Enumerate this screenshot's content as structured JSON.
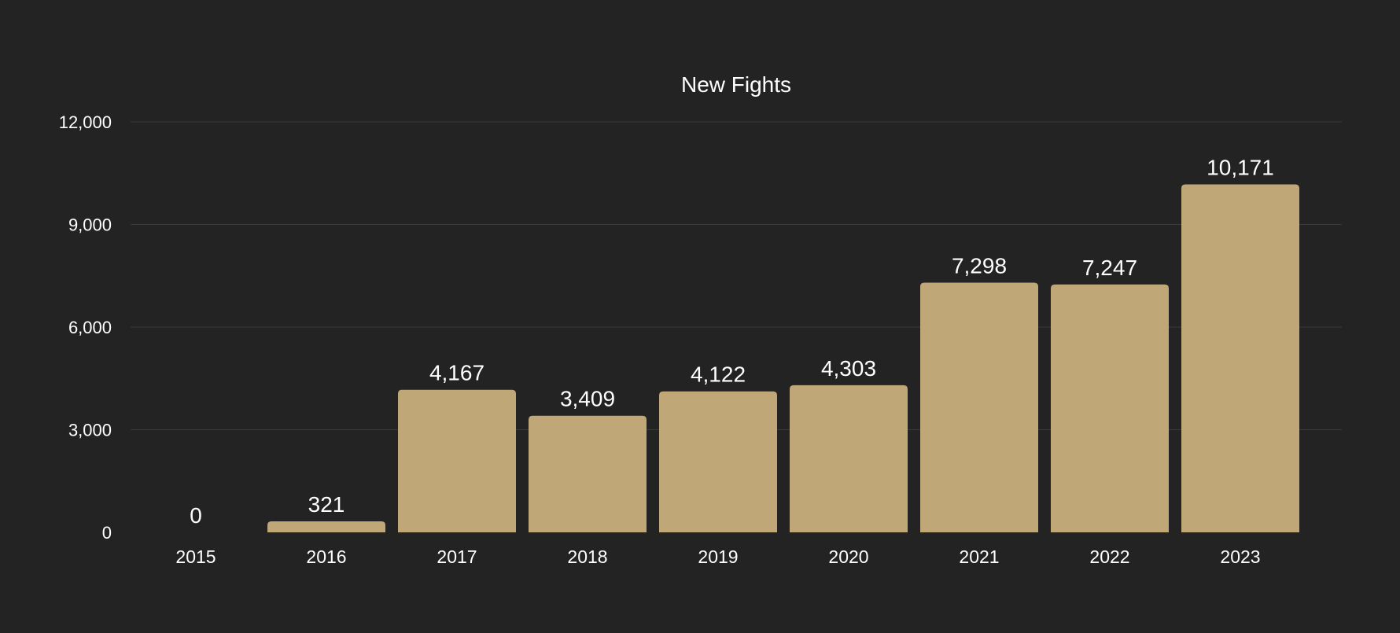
{
  "chart_data": {
    "type": "bar",
    "title": "New Fights",
    "xlabel": "",
    "ylabel": "",
    "categories": [
      "2015",
      "2016",
      "2017",
      "2018",
      "2019",
      "2020",
      "2021",
      "2022",
      "2023"
    ],
    "values": [
      0,
      321,
      4167,
      3409,
      4122,
      4303,
      7298,
      7247,
      10171
    ],
    "data_labels": [
      "0",
      "321",
      "4,167",
      "3,409",
      "4,122",
      "4,303",
      "7,298",
      "7,247",
      "10,171"
    ],
    "ylim": [
      0,
      12000
    ],
    "yticks": [
      0,
      3000,
      6000,
      9000,
      12000
    ],
    "ytick_labels": [
      "0",
      "3,000",
      "6,000",
      "9,000",
      "12,000"
    ],
    "grid": true,
    "legend": "none",
    "colors": {
      "background": "#232323",
      "bar": "#c0a777",
      "grid": "#3a3a3a",
      "text": "#ffffff"
    }
  }
}
